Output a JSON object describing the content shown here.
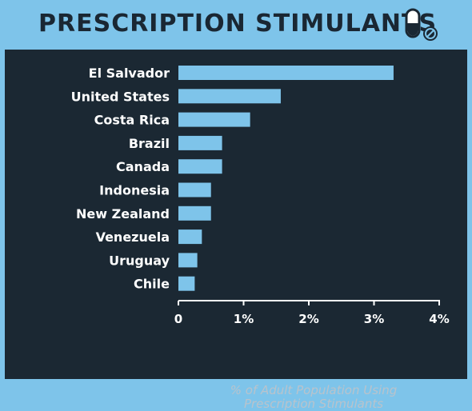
{
  "title": "PRESCRIPTION STIMULANTS",
  "icon": "pill-no-icon",
  "colors": {
    "frame": "#7ec4ea",
    "panel": "#1b2833",
    "bar": "#7ec4ea",
    "text": "#ffffff"
  },
  "chart_data": {
    "type": "bar",
    "orientation": "horizontal",
    "categories": [
      "El Salvador",
      "United States",
      "Costa Rica",
      "Brazil",
      "Canada",
      "Indonesia",
      "New Zealand",
      "Venezuela",
      "Uruguay",
      "Chile"
    ],
    "values": [
      3.3,
      1.57,
      1.1,
      0.67,
      0.67,
      0.5,
      0.5,
      0.36,
      0.29,
      0.25
    ],
    "xlabel_line1": "% of Adult Population Using",
    "xlabel_line2": "Prescription Stimulants",
    "xlim": [
      0,
      4
    ],
    "ticks": [
      0,
      1,
      2,
      3,
      4
    ],
    "tick_labels": [
      "0",
      "1%",
      "2%",
      "3%",
      "4%"
    ],
    "grid": false,
    "legend": "none"
  }
}
